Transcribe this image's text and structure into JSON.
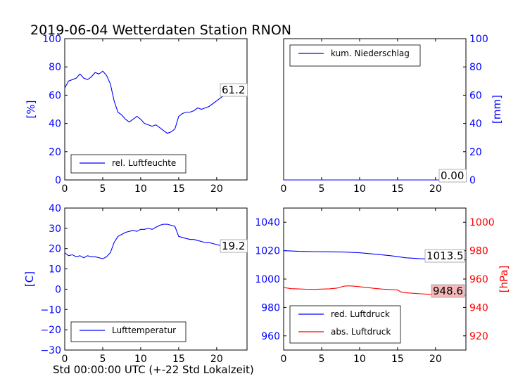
{
  "title": "2019-06-04 Wetterdaten Station RNON",
  "footer_xlabel": "Std 00:00:00 UTC (+-22 Std Lokalzeit)",
  "colors": {
    "blue": "#0000ff",
    "red": "#ff0000",
    "label_box_red": "#f4b8b8"
  },
  "chart_data": [
    {
      "id": "humidity",
      "type": "line",
      "ylabel": "[%]",
      "xlim": [
        0,
        24
      ],
      "ylim": [
        0,
        100
      ],
      "xticks": [
        0,
        5,
        10,
        15,
        20
      ],
      "yticks": [
        0,
        20,
        40,
        60,
        80,
        100
      ],
      "legend_loc": "lower-left",
      "series": [
        {
          "name": "rel. Luftfeuchte",
          "color": "#0000ff",
          "x": [
            0,
            0.5,
            1,
            1.5,
            2,
            2.5,
            3,
            3.5,
            4,
            4.5,
            5,
            5.5,
            6,
            6.5,
            7,
            7.5,
            8,
            8.5,
            9,
            9.5,
            10,
            10.5,
            11,
            11.5,
            12,
            12.5,
            13,
            13.5,
            14,
            14.5,
            15,
            15.5,
            16,
            16.5,
            17,
            17.5,
            18,
            18.5,
            19,
            19.5,
            20,
            20.5,
            21,
            21.5,
            22,
            22.5,
            23,
            23.5,
            24
          ],
          "y": [
            65,
            70,
            71,
            72,
            75,
            72,
            71,
            73,
            76,
            75,
            77,
            74,
            68,
            56,
            48,
            46,
            43,
            41,
            43,
            45,
            43,
            40,
            39,
            38,
            39,
            37,
            35,
            33,
            34,
            36,
            45,
            47,
            48,
            48,
            49,
            51,
            50,
            51,
            52,
            54,
            56,
            58,
            60,
            61,
            62,
            63,
            62,
            61,
            61
          ]
        }
      ],
      "annotation": "61.2"
    },
    {
      "id": "precipitation",
      "type": "line",
      "ylabel": "[mm]",
      "xlim": [
        0,
        24
      ],
      "ylim": [
        0,
        100
      ],
      "xticks": [
        0,
        5,
        10,
        15,
        20
      ],
      "yticks": [
        0,
        20,
        40,
        60,
        80,
        100
      ],
      "legend_loc": "top-left",
      "series": [
        {
          "name": "kum. Niederschlag",
          "color": "#0000ff",
          "x": [
            0,
            24
          ],
          "y": [
            0,
            0
          ]
        }
      ],
      "annotation": "0.00"
    },
    {
      "id": "temperature",
      "type": "line",
      "ylabel": "[C]",
      "xlim": [
        0,
        24
      ],
      "ylim": [
        -30,
        40
      ],
      "xticks": [
        0,
        5,
        10,
        15,
        20
      ],
      "yticks": [
        -30,
        -20,
        -10,
        0,
        10,
        20,
        30,
        40
      ],
      "legend_loc": "lower-left",
      "series": [
        {
          "name": "Lufttemperatur",
          "color": "#0000ff",
          "x": [
            0,
            0.5,
            1,
            1.5,
            2,
            2.5,
            3,
            3.5,
            4,
            4.5,
            5,
            5.5,
            6,
            6.5,
            7,
            7.5,
            8,
            8.5,
            9,
            9.5,
            10,
            10.5,
            11,
            11.5,
            12,
            12.5,
            13,
            13.5,
            14,
            14.5,
            15,
            15.5,
            16,
            16.5,
            17,
            17.5,
            18,
            18.5,
            19,
            19.5,
            20,
            20.5,
            21,
            21.5,
            22,
            22.5,
            23,
            23.5,
            24
          ],
          "y": [
            18,
            16.5,
            17,
            16,
            16.5,
            15.5,
            16.5,
            16,
            16,
            15.5,
            15,
            16,
            18,
            23,
            26,
            27,
            28,
            28.5,
            29,
            28.5,
            29.5,
            29.5,
            30,
            29.5,
            30.5,
            31.5,
            32,
            32,
            31.5,
            31,
            26,
            25.5,
            25,
            24.5,
            24.5,
            24,
            23.5,
            23,
            23,
            22.5,
            22,
            21.5,
            20.5,
            20,
            19.5,
            19,
            19.5,
            19,
            19.2
          ]
        }
      ],
      "annotation": "19.2"
    },
    {
      "id": "pressure",
      "type": "line",
      "xlim": [
        0,
        24
      ],
      "xticks": [
        0,
        5,
        10,
        15,
        20
      ],
      "ylim": [
        950,
        1050
      ],
      "yticks": [
        960,
        980,
        1000,
        1020,
        1040
      ],
      "y2label": "[hPa]",
      "y2lim": [
        910,
        1010
      ],
      "y2ticks": [
        920,
        940,
        960,
        980,
        1000
      ],
      "legend_loc": "lower-left",
      "series": [
        {
          "name": "red. Luftdruck",
          "color": "#0000ff",
          "axis": "left",
          "x": [
            0,
            2,
            4,
            6,
            8,
            10,
            12,
            14,
            15,
            16,
            18,
            20,
            22,
            24
          ],
          "y": [
            1020,
            1019.5,
            1019.3,
            1019.2,
            1019,
            1018.5,
            1017.5,
            1016.5,
            1015.8,
            1015,
            1014.3,
            1014,
            1013.8,
            1013.5
          ]
        },
        {
          "name": "abs. Luftdruck",
          "color": "#ff0000",
          "axis": "right",
          "x": [
            0,
            1,
            2,
            3,
            4,
            5,
            6,
            7,
            7.5,
            8,
            8.5,
            9,
            10,
            11,
            12,
            13,
            14,
            15,
            15.5,
            16,
            17,
            18,
            19,
            20,
            21,
            22,
            23,
            24
          ],
          "y": [
            954,
            953.2,
            953,
            952.8,
            952.7,
            952.9,
            953.1,
            953.6,
            954.3,
            955,
            955.2,
            955.1,
            954.6,
            954,
            953.4,
            952.9,
            952.6,
            952.3,
            950.8,
            950.4,
            950,
            949.6,
            949.3,
            949,
            948.8,
            948.6,
            948.6,
            948.6
          ]
        }
      ],
      "annotations": [
        "1013.5",
        "948.6"
      ]
    }
  ]
}
